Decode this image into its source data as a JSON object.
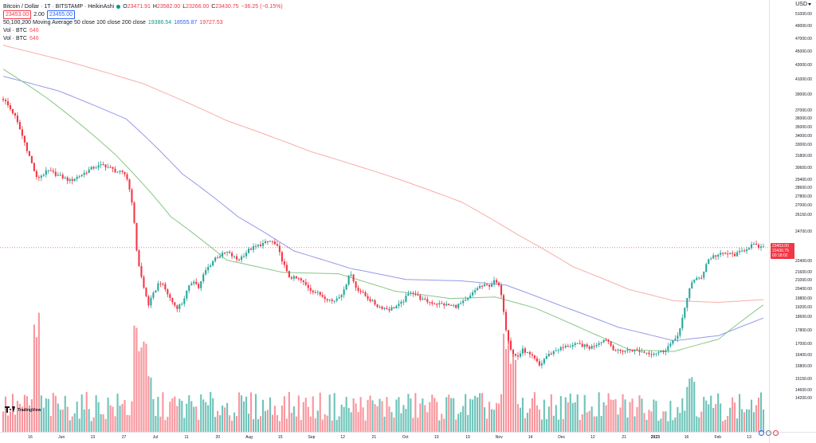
{
  "legend": {
    "title": "Bitcoin / Dollar · 1T · BITSTAMP · HeikinAshi",
    "ohlc": [
      {
        "k": "O",
        "v": "23471.91"
      },
      {
        "k": "H",
        "v": "23582.00"
      },
      {
        "k": "L",
        "v": "23266.00"
      },
      {
        "k": "C",
        "v": "23430.75"
      },
      {
        "k": "",
        "v": "−36.25 (−0.15%)"
      }
    ],
    "bid": "23453.00",
    "spread": "2.00",
    "ask": "23455.00",
    "ma_label": "50,100,200 Moving Average 50 close 100 close 200 close",
    "ma_values": [
      "19386.54",
      "18555.87",
      "19727.53"
    ],
    "vol_rows": [
      {
        "label": "Vol · BTC",
        "value": "646"
      },
      {
        "label": "Vol · BTC",
        "value": "646"
      }
    ]
  },
  "currency": "USD",
  "colors": {
    "up": "#26a69a",
    "down": "#f23645",
    "vol_up": "#53b9ad",
    "vol_down": "#f7828b",
    "ma50": "#7bc07b",
    "ma100": "#8a8ee8",
    "ma200": "#f6a49d",
    "last_line": "#f23645"
  },
  "price_axis": {
    "ticks": [
      "51000.00",
      "49000.00",
      "47000.00",
      "45000.00",
      "43000.00",
      "41000.00",
      "39000.00",
      "37000.00",
      "36000.00",
      "35000.00",
      "34000.00",
      "33000.00",
      "31800.00",
      "30600.00",
      "29400.00",
      "28600.00",
      "27800.00",
      "27000.00",
      "26150.00",
      "24700.00",
      "22400.00",
      "21600.00",
      "21000.00",
      "20400.00",
      "19800.00",
      "19200.00",
      "18600.00",
      "17800.00",
      "17000.00",
      "16400.00",
      "15800.00",
      "15150.00",
      "14600.00",
      "14200.00"
    ],
    "last_price": "23453.00",
    "last_close": "23430.75",
    "countdown": "00:18:02"
  },
  "time_axis": {
    "ticks": [
      "16",
      "Jun",
      "13",
      "27",
      "Jul",
      "11",
      "20",
      "Aug",
      "15",
      "Sep",
      "12",
      "21",
      "Oct",
      "10",
      "19",
      "Nov",
      "14",
      "Dec",
      "12",
      "21",
      "2023",
      "16",
      "Feb",
      "13"
    ],
    "bold": [
      "2023"
    ]
  },
  "branding": "TradingView",
  "chart_data": {
    "type": "candlestick",
    "style": "HeikinAshi",
    "symbol": "Bitcoin / Dollar",
    "exchange": "BITSTAMP",
    "interval": "1T",
    "y_scale": "log",
    "ylim": [
      14200,
      51000
    ],
    "grid": false,
    "x_ticks": [
      "16",
      "Jun",
      "13",
      "27",
      "Jul",
      "11",
      "20",
      "Aug",
      "15",
      "Sep",
      "12",
      "21",
      "Oct",
      "10",
      "19",
      "Nov",
      "14",
      "Dec",
      "12",
      "21",
      "2023",
      "16",
      "Feb",
      "13"
    ],
    "price_path": [
      {
        "t": 0,
        "v": 38500
      },
      {
        "t": 2,
        "v": 36500
      },
      {
        "t": 4,
        "v": 33000
      },
      {
        "t": 6,
        "v": 29500
      },
      {
        "t": 8,
        "v": 30300
      },
      {
        "t": 10,
        "v": 29800
      },
      {
        "t": 12,
        "v": 29300
      },
      {
        "t": 14,
        "v": 29900
      },
      {
        "t": 16,
        "v": 30600
      },
      {
        "t": 18,
        "v": 30900
      },
      {
        "t": 20,
        "v": 30300
      },
      {
        "t": 22,
        "v": 29900
      },
      {
        "t": 23,
        "v": 27500
      },
      {
        "t": 24,
        "v": 22700
      },
      {
        "t": 25,
        "v": 20700
      },
      {
        "t": 26,
        "v": 19400
      },
      {
        "t": 27,
        "v": 20200
      },
      {
        "t": 28,
        "v": 21000
      },
      {
        "t": 29,
        "v": 20400
      },
      {
        "t": 30,
        "v": 19700
      },
      {
        "t": 31,
        "v": 19200
      },
      {
        "t": 32,
        "v": 19500
      },
      {
        "t": 33,
        "v": 20400
      },
      {
        "t": 34,
        "v": 21100
      },
      {
        "t": 35,
        "v": 20500
      },
      {
        "t": 36,
        "v": 21600
      },
      {
        "t": 38,
        "v": 22700
      },
      {
        "t": 40,
        "v": 23100
      },
      {
        "t": 42,
        "v": 22500
      },
      {
        "t": 44,
        "v": 23300
      },
      {
        "t": 46,
        "v": 23700
      },
      {
        "t": 48,
        "v": 24000
      },
      {
        "t": 49,
        "v": 23500
      },
      {
        "t": 50,
        "v": 22400
      },
      {
        "t": 51,
        "v": 21300
      },
      {
        "t": 53,
        "v": 21100
      },
      {
        "t": 55,
        "v": 20400
      },
      {
        "t": 57,
        "v": 20000
      },
      {
        "t": 59,
        "v": 19600
      },
      {
        "t": 61,
        "v": 20300
      },
      {
        "t": 62,
        "v": 21700
      },
      {
        "t": 63,
        "v": 20600
      },
      {
        "t": 65,
        "v": 19900
      },
      {
        "t": 67,
        "v": 19300
      },
      {
        "t": 69,
        "v": 19100
      },
      {
        "t": 71,
        "v": 19400
      },
      {
        "t": 73,
        "v": 20300
      },
      {
        "t": 75,
        "v": 19700
      },
      {
        "t": 77,
        "v": 19500
      },
      {
        "t": 79,
        "v": 19400
      },
      {
        "t": 81,
        "v": 19300
      },
      {
        "t": 83,
        "v": 19700
      },
      {
        "t": 85,
        "v": 20600
      },
      {
        "t": 87,
        "v": 20700
      },
      {
        "t": 88,
        "v": 21000
      },
      {
        "t": 89,
        "v": 20400
      },
      {
        "t": 90,
        "v": 17800
      },
      {
        "t": 91,
        "v": 16500
      },
      {
        "t": 92,
        "v": 16300
      },
      {
        "t": 93,
        "v": 16700
      },
      {
        "t": 95,
        "v": 16200
      },
      {
        "t": 96,
        "v": 15800
      },
      {
        "t": 97,
        "v": 16300
      },
      {
        "t": 99,
        "v": 16700
      },
      {
        "t": 101,
        "v": 16900
      },
      {
        "t": 103,
        "v": 17000
      },
      {
        "t": 105,
        "v": 16800
      },
      {
        "t": 107,
        "v": 17200
      },
      {
        "t": 108,
        "v": 17300
      },
      {
        "t": 109,
        "v": 16800
      },
      {
        "t": 110,
        "v": 16600
      },
      {
        "t": 112,
        "v": 16700
      },
      {
        "t": 114,
        "v": 16600
      },
      {
        "t": 116,
        "v": 16500
      },
      {
        "t": 118,
        "v": 16600
      },
      {
        "t": 119,
        "v": 16900
      },
      {
        "t": 120,
        "v": 17200
      },
      {
        "t": 121,
        "v": 17800
      },
      {
        "t": 122,
        "v": 19200
      },
      {
        "t": 123,
        "v": 20900
      },
      {
        "t": 124,
        "v": 21100
      },
      {
        "t": 125,
        "v": 21300
      },
      {
        "t": 126,
        "v": 22500
      },
      {
        "t": 127,
        "v": 22800
      },
      {
        "t": 129,
        "v": 23000
      },
      {
        "t": 131,
        "v": 22900
      },
      {
        "t": 133,
        "v": 23400
      },
      {
        "t": 134,
        "v": 23700
      },
      {
        "t": 135,
        "v": 23500
      },
      {
        "t": 136,
        "v": 23430
      }
    ],
    "ma50": [
      {
        "t": 0,
        "v": 42500
      },
      {
        "t": 8,
        "v": 38500
      },
      {
        "t": 20,
        "v": 32000
      },
      {
        "t": 30,
        "v": 26000
      },
      {
        "t": 40,
        "v": 22500
      },
      {
        "t": 50,
        "v": 21600
      },
      {
        "t": 60,
        "v": 21500
      },
      {
        "t": 70,
        "v": 20300
      },
      {
        "t": 80,
        "v": 19800
      },
      {
        "t": 88,
        "v": 19900
      },
      {
        "t": 95,
        "v": 19200
      },
      {
        "t": 105,
        "v": 17700
      },
      {
        "t": 112,
        "v": 16700
      },
      {
        "t": 120,
        "v": 16600
      },
      {
        "t": 128,
        "v": 17300
      },
      {
        "t": 136,
        "v": 19386
      }
    ],
    "ma100": [
      {
        "t": 0,
        "v": 41500
      },
      {
        "t": 10,
        "v": 39500
      },
      {
        "t": 22,
        "v": 36000
      },
      {
        "t": 32,
        "v": 30000
      },
      {
        "t": 42,
        "v": 26000
      },
      {
        "t": 52,
        "v": 23200
      },
      {
        "t": 62,
        "v": 21900
      },
      {
        "t": 72,
        "v": 21100
      },
      {
        "t": 82,
        "v": 21000
      },
      {
        "t": 90,
        "v": 20700
      },
      {
        "t": 100,
        "v": 19300
      },
      {
        "t": 110,
        "v": 18000
      },
      {
        "t": 120,
        "v": 17200
      },
      {
        "t": 128,
        "v": 17500
      },
      {
        "t": 136,
        "v": 18555
      }
    ],
    "ma200": [
      {
        "t": 0,
        "v": 46000
      },
      {
        "t": 12,
        "v": 43500
      },
      {
        "t": 25,
        "v": 40500
      },
      {
        "t": 40,
        "v": 35800
      },
      {
        "t": 55,
        "v": 32300
      },
      {
        "t": 70,
        "v": 29600
      },
      {
        "t": 82,
        "v": 27300
      },
      {
        "t": 92,
        "v": 24500
      },
      {
        "t": 102,
        "v": 22000
      },
      {
        "t": 112,
        "v": 20400
      },
      {
        "t": 120,
        "v": 19650
      },
      {
        "t": 128,
        "v": 19550
      },
      {
        "t": 136,
        "v": 19727
      }
    ],
    "volume_spikes": [
      {
        "t": 6,
        "v": 1.0
      },
      {
        "t": 24,
        "v": 0.85
      },
      {
        "t": 25,
        "v": 0.7
      },
      {
        "t": 26,
        "v": 0.45
      },
      {
        "t": 90,
        "v": 0.85
      },
      {
        "t": 91,
        "v": 0.6
      },
      {
        "t": 123,
        "v": 0.45
      }
    ],
    "volume_max": 1.0
  }
}
